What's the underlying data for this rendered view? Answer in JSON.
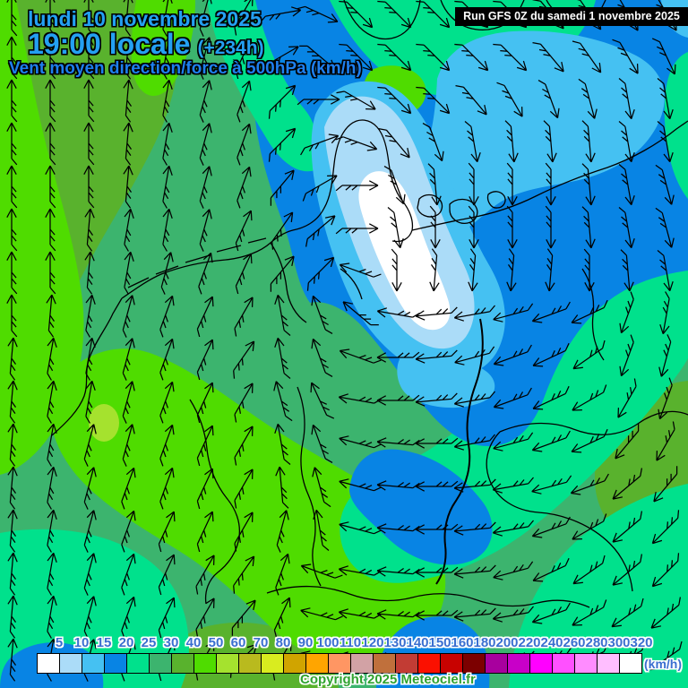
{
  "header": {
    "date_line": "lundi 10 novembre 2025",
    "time_line": "19:00 locale",
    "forecast_offset": "(+234h)",
    "subtitle": "Vent moyen direction/force à 500hPa (km/h)"
  },
  "run_banner": {
    "text": "Run GFS 0Z du samedi 1 novembre 2025"
  },
  "legend": {
    "unit": "(km/h)",
    "labels": [
      "5",
      "10",
      "15",
      "20",
      "25",
      "30",
      "40",
      "50",
      "60",
      "70",
      "80",
      "90",
      "100",
      "110",
      "120",
      "130",
      "140",
      "150",
      "160",
      "180",
      "200",
      "220",
      "240",
      "260",
      "280",
      "300",
      "320"
    ],
    "colors": [
      "#ffffff",
      "#abdcf8",
      "#45c1f2",
      "#0884e4",
      "#00e18c",
      "#3cb46e",
      "#59b22d",
      "#4fdc00",
      "#a5e22e",
      "#b9ba1e",
      "#d9ec1f",
      "#d0a400",
      "#ffa500",
      "#ff9663",
      "#d2a2a5",
      "#c0703c",
      "#c23c34",
      "#fb1000",
      "#c80200",
      "#7c0000",
      "#a8009e",
      "#c800c8",
      "#ff00ff",
      "#ff50ff",
      "#ff8cff",
      "#ffbeff",
      "#ffffff"
    ]
  },
  "footer": {
    "copyright": "Copyright 2025 Meteociel.fr"
  },
  "map_palette": {
    "calm_white": "#ffffff",
    "pale_blue": "#abdcf8",
    "cyan": "#45c1f2",
    "blue": "#0884e4",
    "teal": "#00e18c",
    "sea_green": "#3cb46e",
    "olive_green": "#59b22d",
    "bright_green": "#4fdc00",
    "chartreuse": "#a5e22e"
  },
  "wind_field": {
    "grid_origin": [
      13,
      15
    ],
    "grid_step": [
      43,
      48
    ],
    "angles_deg": [
      [
        0,
        0,
        0,
        5,
        10,
        15,
        30,
        80,
        115,
        135,
        135,
        135,
        135,
        135,
        140,
        145,
        150,
        150
      ],
      [
        0,
        0,
        0,
        5,
        10,
        15,
        25,
        60,
        130,
        135,
        135,
        135,
        135,
        135,
        140,
        145,
        150,
        155
      ],
      [
        0,
        0,
        0,
        5,
        10,
        15,
        20,
        45,
        90,
        120,
        135,
        135,
        140,
        150,
        160,
        165,
        170,
        170
      ],
      [
        0,
        0,
        0,
        5,
        10,
        15,
        20,
        45,
        70,
        110,
        140,
        160,
        170,
        175,
        175,
        175,
        170,
        170
      ],
      [
        0,
        0,
        0,
        5,
        10,
        15,
        20,
        40,
        60,
        90,
        160,
        175,
        180,
        180,
        180,
        175,
        170,
        165
      ],
      [
        0,
        0,
        5,
        10,
        10,
        15,
        25,
        35,
        50,
        90,
        170,
        180,
        180,
        180,
        180,
        175,
        170,
        165
      ],
      [
        0,
        0,
        5,
        10,
        15,
        20,
        25,
        40,
        45,
        290,
        180,
        185,
        185,
        185,
        185,
        180,
        175,
        170
      ],
      [
        0,
        5,
        10,
        15,
        20,
        25,
        30,
        350,
        340,
        310,
        280,
        265,
        260,
        255,
        250,
        245,
        200,
        190
      ],
      [
        5,
        10,
        10,
        15,
        20,
        25,
        35,
        350,
        340,
        290,
        270,
        265,
        255,
        250,
        245,
        235,
        200,
        195
      ],
      [
        5,
        10,
        10,
        15,
        20,
        25,
        30,
        345,
        335,
        280,
        270,
        265,
        260,
        250,
        245,
        240,
        210,
        200
      ],
      [
        5,
        10,
        15,
        15,
        20,
        25,
        30,
        350,
        340,
        285,
        275,
        270,
        260,
        255,
        250,
        245,
        220,
        210
      ],
      [
        5,
        10,
        15,
        20,
        20,
        25,
        30,
        355,
        345,
        285,
        275,
        270,
        265,
        260,
        255,
        250,
        230,
        220
      ],
      [
        5,
        10,
        15,
        20,
        25,
        25,
        30,
        15,
        350,
        285,
        275,
        270,
        265,
        260,
        250,
        240,
        230,
        225
      ],
      [
        5,
        10,
        15,
        20,
        25,
        30,
        35,
        20,
        290,
        280,
        275,
        270,
        265,
        255,
        245,
        235,
        230,
        225
      ],
      [
        5,
        10,
        15,
        20,
        25,
        30,
        40,
        25,
        285,
        280,
        275,
        270,
        265,
        260,
        250,
        240,
        235,
        230
      ],
      [
        5,
        10,
        15,
        20,
        25,
        30,
        45,
        30,
        285,
        280,
        275,
        270,
        270,
        265,
        255,
        245,
        240,
        235
      ]
    ]
  }
}
